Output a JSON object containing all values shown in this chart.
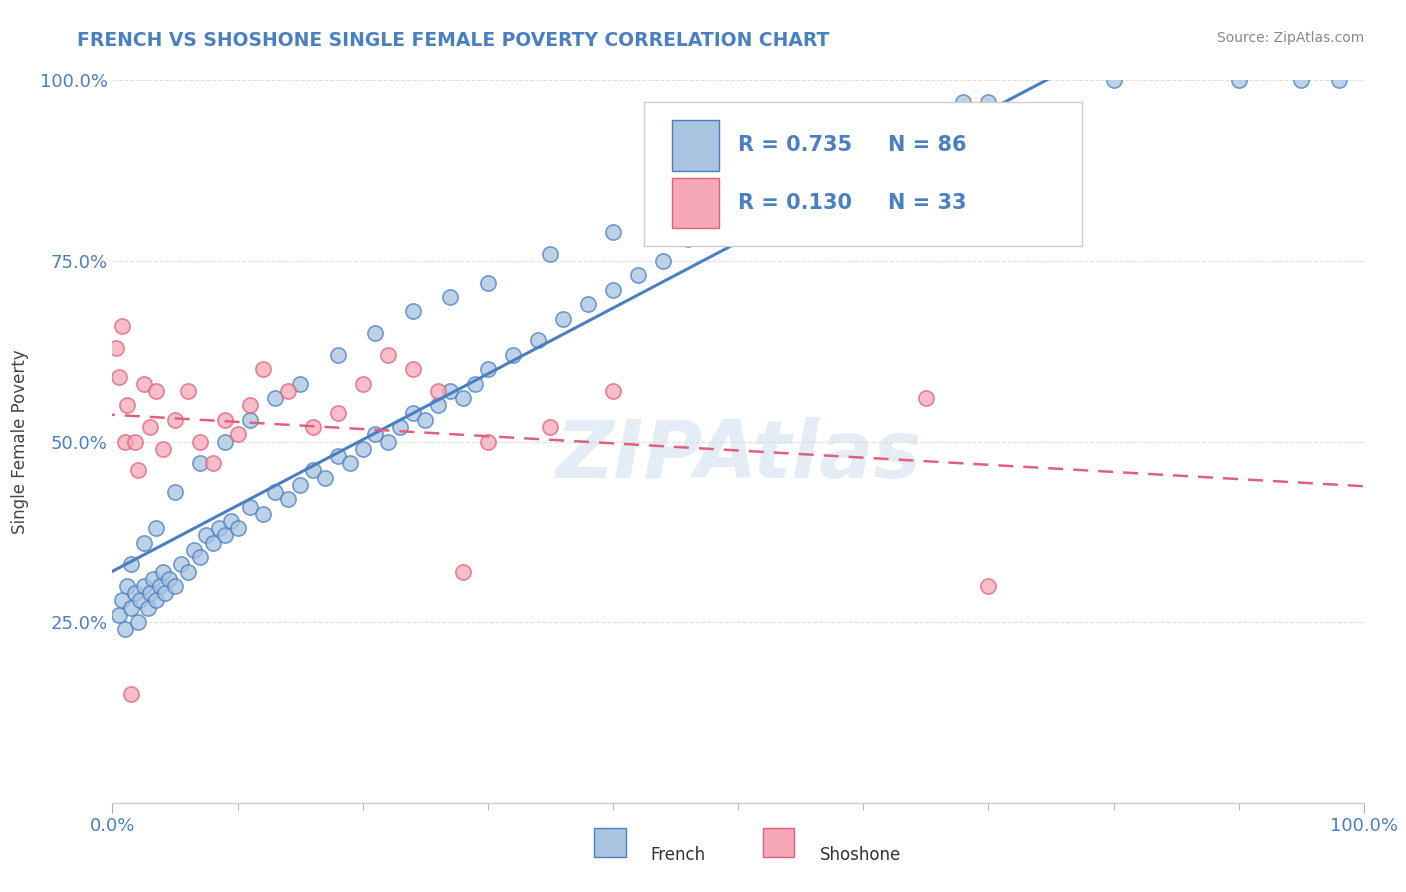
{
  "title": "FRENCH VS SHOSHONE SINGLE FEMALE POVERTY CORRELATION CHART",
  "source": "Source: ZipAtlas.com",
  "ylabel": "Single Female Poverty",
  "french_color": "#a8c4e0",
  "shoshone_color": "#f5a8b8",
  "french_line_color": "#4a7fc1",
  "shoshone_line_color": "#e0607a",
  "watermark": "ZIPAtlas",
  "legend_R1": "R = 0.735",
  "legend_N1": "N = 86",
  "legend_R2": "R = 0.130",
  "legend_N2": "N = 33",
  "title_color": "#4a7fc1",
  "source_color": "#888888",
  "tick_color": "#4a7fc1",
  "ylabel_color": "#444444",
  "grid_color": "#e8e8e8",
  "french_x": [
    0.5,
    0.8,
    1.0,
    1.2,
    1.5,
    1.8,
    2.0,
    2.2,
    2.5,
    2.8,
    3.0,
    3.2,
    3.5,
    3.8,
    4.0,
    4.2,
    4.5,
    5.0,
    5.5,
    6.0,
    6.5,
    7.0,
    7.5,
    8.0,
    8.5,
    9.0,
    9.5,
    10.0,
    11.0,
    12.0,
    13.0,
    14.0,
    15.0,
    16.0,
    17.0,
    18.0,
    19.0,
    20.0,
    21.0,
    22.0,
    23.0,
    24.0,
    25.0,
    26.0,
    27.0,
    28.0,
    29.0,
    30.0,
    32.0,
    34.0,
    36.0,
    38.0,
    40.0,
    42.0,
    44.0,
    46.0,
    48.0,
    50.0,
    55.0,
    60.0,
    65.0,
    70.0,
    80.0,
    90.0,
    95.0,
    98.0,
    1.5,
    2.5,
    3.5,
    5.0,
    7.0,
    9.0,
    11.0,
    13.0,
    15.0,
    18.0,
    21.0,
    24.0,
    27.0,
    30.0,
    35.0,
    40.0,
    45.0,
    52.0,
    58.0,
    68.0
  ],
  "french_y": [
    26.0,
    28.0,
    24.0,
    30.0,
    27.0,
    29.0,
    25.0,
    28.0,
    30.0,
    27.0,
    29.0,
    31.0,
    28.0,
    30.0,
    32.0,
    29.0,
    31.0,
    30.0,
    33.0,
    32.0,
    35.0,
    34.0,
    37.0,
    36.0,
    38.0,
    37.0,
    39.0,
    38.0,
    41.0,
    40.0,
    43.0,
    42.0,
    44.0,
    46.0,
    45.0,
    48.0,
    47.0,
    49.0,
    51.0,
    50.0,
    52.0,
    54.0,
    53.0,
    55.0,
    57.0,
    56.0,
    58.0,
    60.0,
    62.0,
    64.0,
    67.0,
    69.0,
    71.0,
    73.0,
    75.0,
    78.0,
    80.0,
    82.0,
    87.0,
    91.0,
    94.0,
    97.0,
    100.0,
    100.0,
    100.0,
    100.0,
    33.0,
    36.0,
    38.0,
    43.0,
    47.0,
    50.0,
    53.0,
    56.0,
    58.0,
    62.0,
    65.0,
    68.0,
    70.0,
    72.0,
    76.0,
    79.0,
    82.0,
    87.0,
    91.0,
    97.0
  ],
  "shoshone_x": [
    0.3,
    0.5,
    0.8,
    1.0,
    1.2,
    1.5,
    1.8,
    2.0,
    2.5,
    3.0,
    3.5,
    4.0,
    5.0,
    6.0,
    7.0,
    8.0,
    9.0,
    10.0,
    11.0,
    12.0,
    14.0,
    16.0,
    18.0,
    20.0,
    22.0,
    24.0,
    26.0,
    28.0,
    30.0,
    35.0,
    40.0,
    65.0,
    70.0
  ],
  "shoshone_y": [
    63.0,
    59.0,
    66.0,
    50.0,
    55.0,
    15.0,
    50.0,
    46.0,
    58.0,
    52.0,
    57.0,
    49.0,
    53.0,
    57.0,
    50.0,
    47.0,
    53.0,
    51.0,
    55.0,
    60.0,
    57.0,
    52.0,
    54.0,
    58.0,
    62.0,
    60.0,
    57.0,
    32.0,
    50.0,
    52.0,
    57.0,
    56.0,
    30.0
  ]
}
